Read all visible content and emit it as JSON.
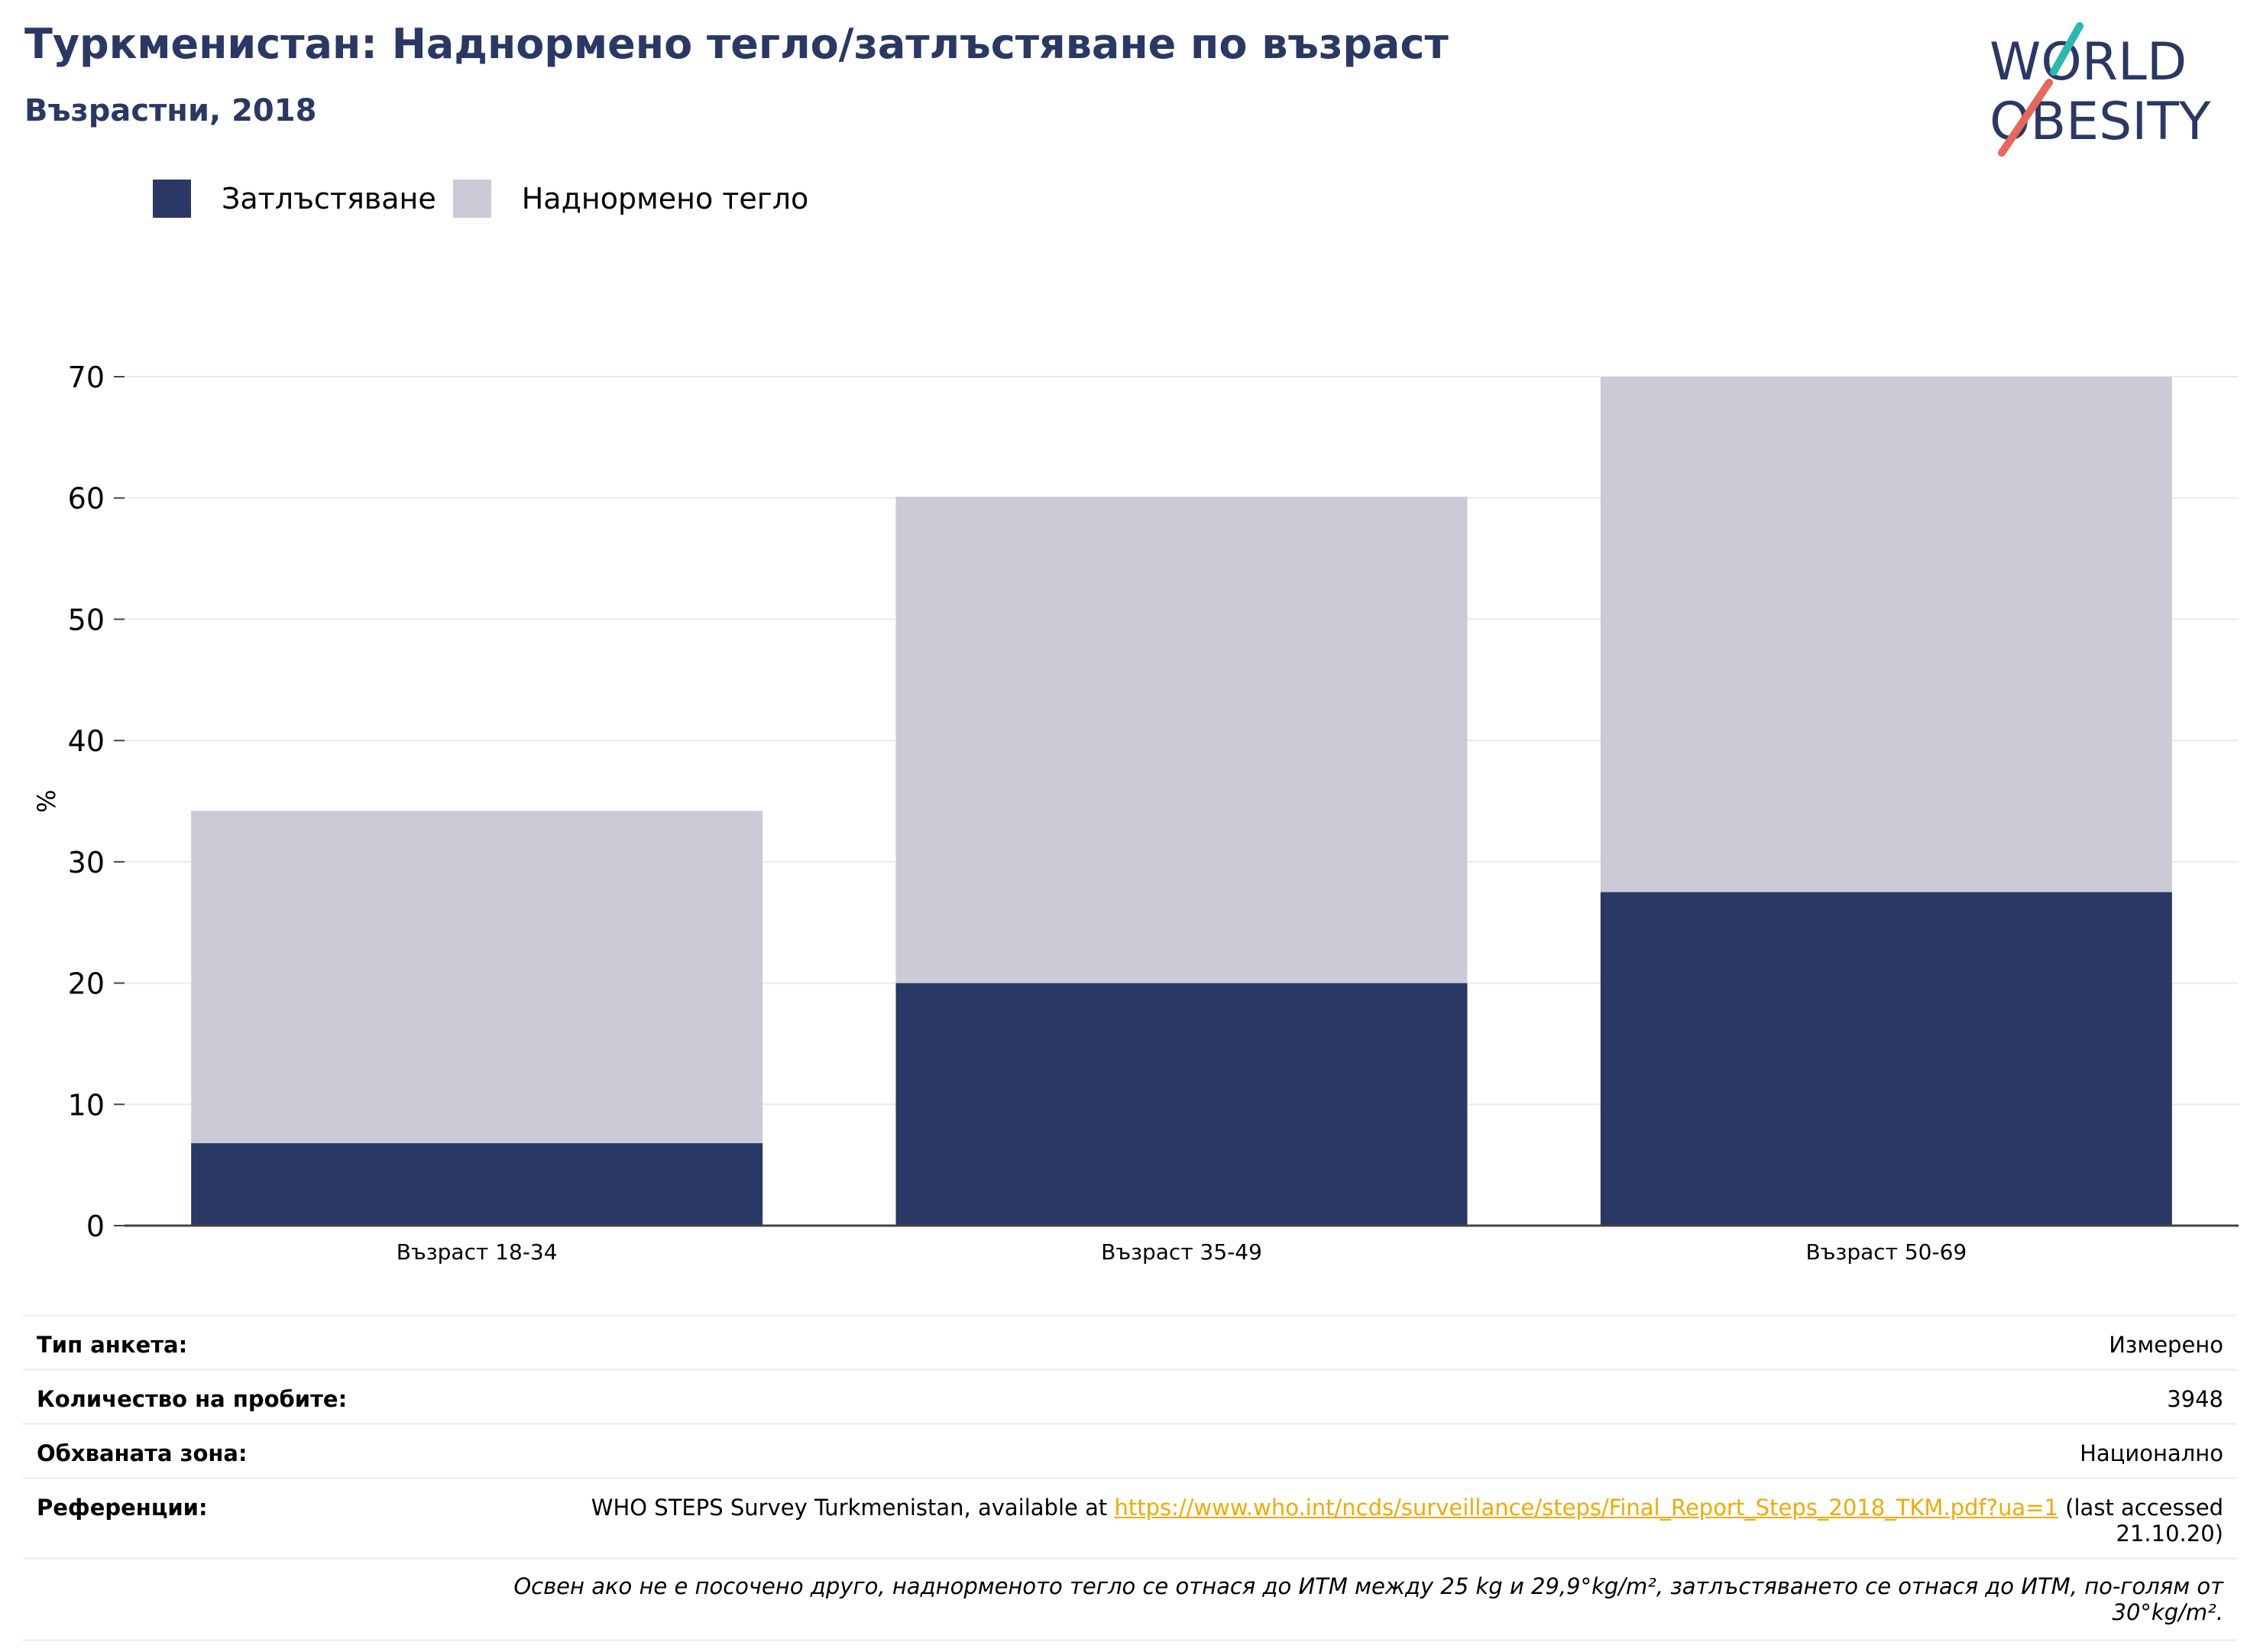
{
  "header": {
    "title": "Туркменистан: Наднормено тегло/затлъстяване по възраст",
    "subtitle": "Възрастни, 2018"
  },
  "logo": {
    "line1": "WORLD",
    "line2": "OBESITY",
    "slash_colors": [
      "#2bb8b0",
      "#e8665a"
    ]
  },
  "chart_data": {
    "type": "bar",
    "stacked": true,
    "categories": [
      "Възраст 18-34",
      "Възраст 35-49",
      "Възраст 50-69"
    ],
    "series": [
      {
        "name": "Затлъстяване",
        "values": [
          6.8,
          20.0,
          27.5
        ],
        "color": "#2a3865"
      },
      {
        "name": "Наднормено тегло",
        "values": [
          27.4,
          40.1,
          42.5
        ],
        "color": "#cacbd7"
      }
    ],
    "totals": [
      34.2,
      60.1,
      70.0
    ],
    "title": "",
    "xlabel": "",
    "ylabel": "%",
    "ylim": [
      0,
      70
    ],
    "yticks": [
      0,
      10,
      20,
      30,
      40,
      50,
      60,
      70
    ],
    "grid": true,
    "legend_position": "top-left"
  },
  "info": {
    "survey_type_label": "Тип анкета:",
    "survey_type_value": "Измерено",
    "sample_size_label": "Количество на пробите:",
    "sample_size_value": "3948",
    "coverage_label": "Обхваната зона:",
    "coverage_value": "Национално",
    "references_label": "Референции:",
    "references_prefix": "WHO STEPS Survey Turkmenistan, available at ",
    "references_link": "https://www.who.int/ncds/surveillance/steps/Final_Report_Steps_2018_TKM.pdf?ua=1",
    "references_suffix": " (last accessed 21.10.20)",
    "note": "Освен ако не е посочено друго, наднорменото тегло се отнася до ИТМ между 25 kg и 29,9°kg/m², затлъстяването се отнася до ИТМ, по-голям от 30°kg/m²."
  }
}
